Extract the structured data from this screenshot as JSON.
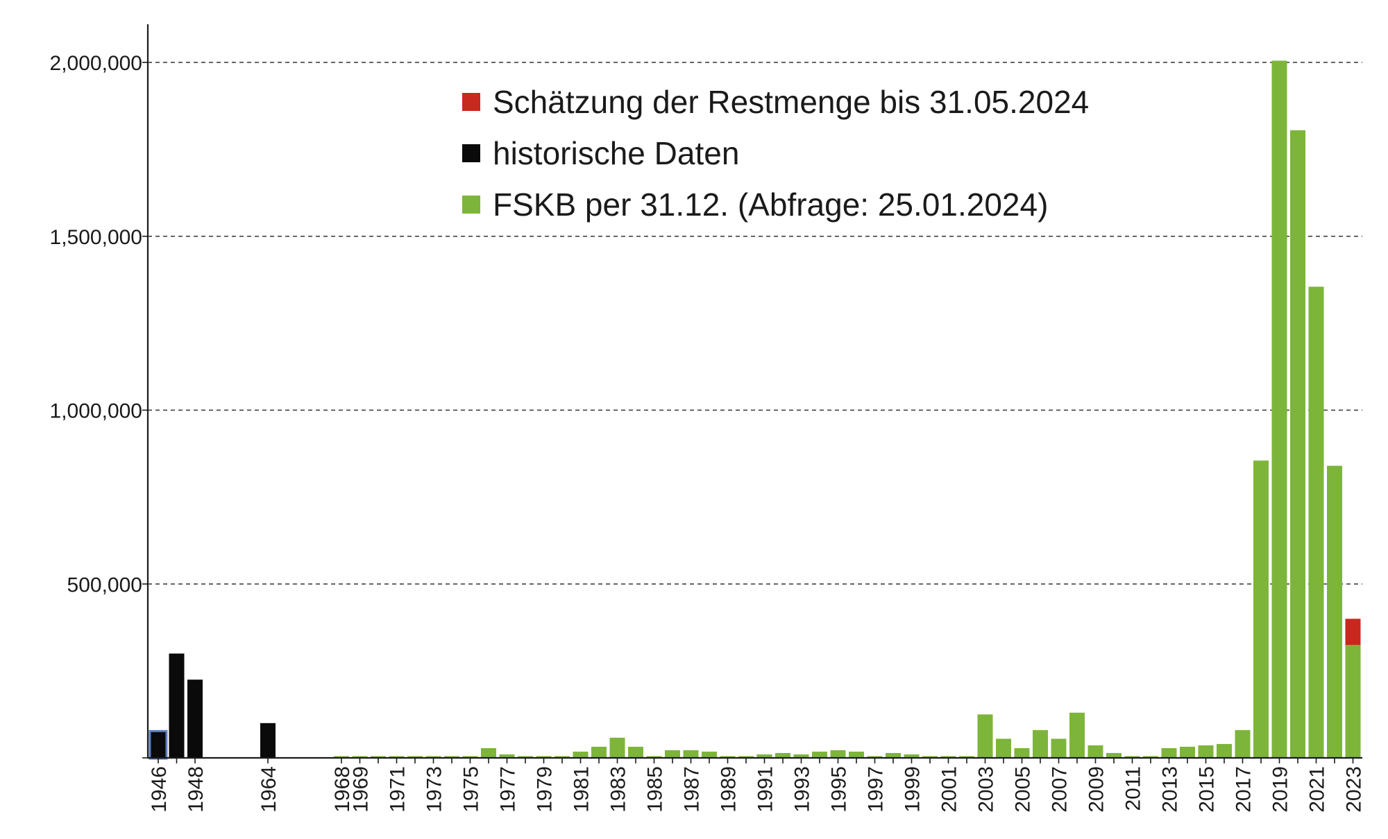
{
  "chart_data": {
    "type": "bar",
    "title": "",
    "xlabel": "",
    "ylabel": "",
    "ylim": [
      0,
      2100000
    ],
    "yticks": [
      500000,
      1000000,
      1500000,
      2000000
    ],
    "ytick_labels": [
      "500,000",
      "1,000,000",
      "1,500,000",
      "2,000,000"
    ],
    "grid": true,
    "legend_position": "top-center",
    "legend": [
      {
        "label": "Schätzung der Restmenge bis 31.05.2024",
        "color": "#c8281e"
      },
      {
        "label": "historische Daten",
        "color": "#0a0a0a"
      },
      {
        "label": "FSKB per 31.12. (Abfrage: 25.01.2024)",
        "color": "#7db53b"
      }
    ],
    "colors": {
      "historical": "#0a0a0a",
      "fskb": "#7db53b",
      "estimate": "#c8281e",
      "highlight_outline": "#5b7fc0"
    },
    "categories": [
      "1946",
      "1947",
      "1948",
      "1964",
      "1968",
      "1969",
      "1970",
      "1971",
      "1972",
      "1973",
      "1974",
      "1975",
      "1976",
      "1977",
      "1978",
      "1979",
      "1980",
      "1981",
      "1982",
      "1983",
      "1984",
      "1985",
      "1986",
      "1987",
      "1988",
      "1989",
      "1990",
      "1991",
      "1992",
      "1993",
      "1994",
      "1995",
      "1996",
      "1997",
      "1998",
      "1999",
      "2000",
      "2001",
      "2002",
      "2003",
      "2004",
      "2005",
      "2006",
      "2007",
      "2008",
      "2009",
      "2010",
      "2011",
      "2012",
      "2013",
      "2014",
      "2015",
      "2016",
      "2017",
      "2018",
      "2019",
      "2020",
      "2021",
      "2022",
      "2023"
    ],
    "tick_labels": [
      "1946",
      "",
      "1948",
      "1964",
      "1968",
      "1969",
      "",
      "1971",
      "",
      "1973",
      "",
      "1975",
      "",
      "1977",
      "",
      "1979",
      "",
      "1981",
      "",
      "1983",
      "",
      "1985",
      "",
      "1987",
      "",
      "1989",
      "",
      "1991",
      "",
      "1993",
      "",
      "1995",
      "",
      "1997",
      "",
      "1999",
      "",
      "2001",
      "",
      "2003",
      "",
      "2005",
      "",
      "2007",
      "",
      "2009",
      "",
      "2011",
      "",
      "2013",
      "",
      "2015",
      "",
      "2017",
      "",
      "2019",
      "",
      "2021",
      "",
      "2023"
    ],
    "series": [
      {
        "name": "historische Daten",
        "values": [
          75000,
          300000,
          225000,
          100000,
          0,
          0,
          0,
          0,
          0,
          0,
          0,
          0,
          0,
          0,
          0,
          0,
          0,
          0,
          0,
          0,
          0,
          0,
          0,
          0,
          0,
          0,
          0,
          0,
          0,
          0,
          0,
          0,
          0,
          0,
          0,
          0,
          0,
          0,
          0,
          0,
          0,
          0,
          0,
          0,
          0,
          0,
          0,
          0,
          0,
          0,
          0,
          0,
          0,
          0,
          0,
          0,
          0,
          0,
          0,
          0
        ]
      },
      {
        "name": "FSKB per 31.12. (Abfrage: 25.01.2024)",
        "values": [
          0,
          0,
          0,
          0,
          5000,
          5000,
          5000,
          5000,
          5000,
          5000,
          5000,
          5000,
          28000,
          10000,
          5000,
          5000,
          5000,
          18000,
          32000,
          58000,
          32000,
          5000,
          22000,
          22000,
          18000,
          5000,
          5000,
          10000,
          14000,
          10000,
          18000,
          22000,
          18000,
          5000,
          14000,
          10000,
          5000,
          5000,
          5000,
          125000,
          55000,
          28000,
          80000,
          55000,
          130000,
          36000,
          14000,
          5000,
          5000,
          28000,
          32000,
          36000,
          40000,
          80000,
          855000,
          2005000,
          1805000,
          1355000,
          840000,
          325000
        ]
      },
      {
        "name": "Schätzung der Restmenge bis 31.05.2024",
        "values": [
          0,
          0,
          0,
          0,
          0,
          0,
          0,
          0,
          0,
          0,
          0,
          0,
          0,
          0,
          0,
          0,
          0,
          0,
          0,
          0,
          0,
          0,
          0,
          0,
          0,
          0,
          0,
          0,
          0,
          0,
          0,
          0,
          0,
          0,
          0,
          0,
          0,
          0,
          0,
          0,
          0,
          0,
          0,
          0,
          0,
          0,
          0,
          0,
          0,
          0,
          0,
          0,
          0,
          0,
          0,
          0,
          0,
          0,
          0,
          75000
        ]
      }
    ]
  }
}
